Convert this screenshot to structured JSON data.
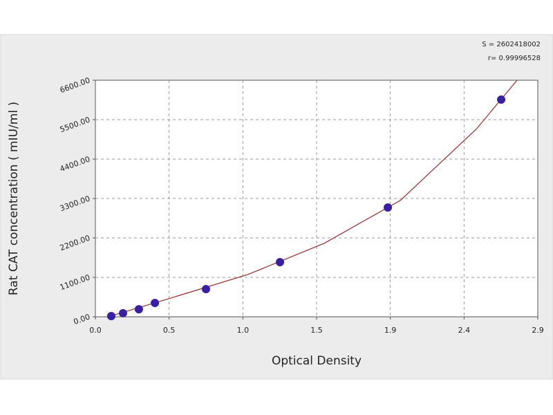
{
  "chart_data": {
    "type": "scatter",
    "xlabel": "Optical Density",
    "ylabel": "Rat CAT concentration ( mIU/ml )",
    "annotations": [
      "S = 2602418002",
      "r= 0.99996528"
    ],
    "xlim": [
      0,
      2.9
    ],
    "ylim": [
      0,
      6600
    ],
    "xticks": [
      {
        "value": 0,
        "label": "0.0"
      },
      {
        "value": 0.483,
        "label": "0.5"
      },
      {
        "value": 0.967,
        "label": "1.0"
      },
      {
        "value": 1.45,
        "label": "1.5"
      },
      {
        "value": 1.933,
        "label": "1.9"
      },
      {
        "value": 2.417,
        "label": "2.4"
      },
      {
        "value": 2.9,
        "label": "2.9"
      }
    ],
    "yticks": [
      {
        "value": 0,
        "label": "0.00"
      },
      {
        "value": 1100,
        "label": "1100.00"
      },
      {
        "value": 2200,
        "label": "2200.00"
      },
      {
        "value": 3300,
        "label": "3300.00"
      },
      {
        "value": 4400,
        "label": "4400.00"
      },
      {
        "value": 5500,
        "label": "5500.00"
      },
      {
        "value": 6600,
        "label": "6600.00"
      }
    ],
    "grid": true,
    "series": [
      {
        "mode": "line",
        "color": "#9a2b2b",
        "x": [
          0.1,
          0.5,
          1.0,
          1.5,
          2.0,
          2.5,
          2.764
        ],
        "values": [
          20,
          530,
          1180,
          2050,
          3250,
          5250,
          6600
        ]
      },
      {
        "mode": "markers",
        "color": "#3b1fa3",
        "x": [
          0.104,
          0.181,
          0.285,
          0.39,
          0.725,
          1.21,
          1.917,
          2.66
        ],
        "values": [
          20,
          100,
          210,
          386,
          772,
          1525,
          3049,
          6060
        ]
      }
    ]
  }
}
